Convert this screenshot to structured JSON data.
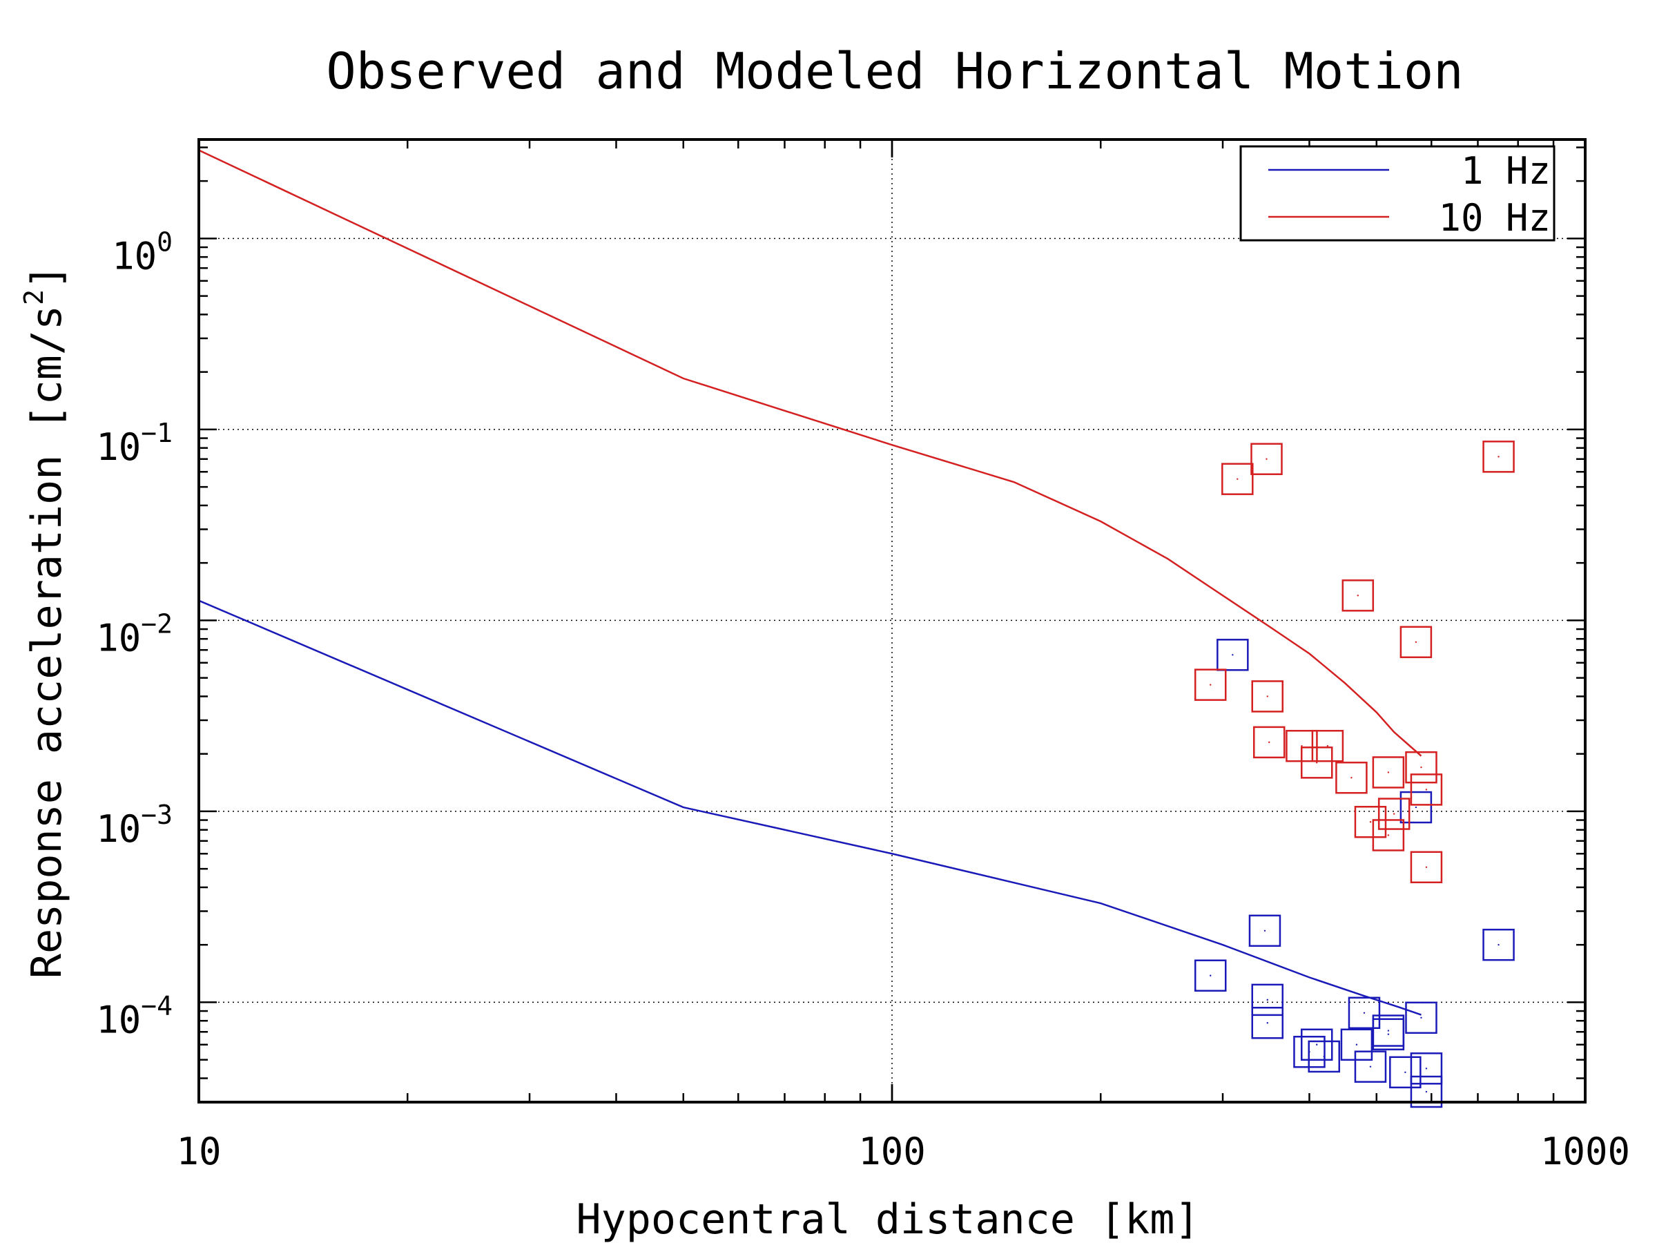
{
  "chart_data": {
    "type": "scatter",
    "title": "Observed and Modeled Horizontal Motion",
    "xlabel": "Hypocentral distance [km]",
    "ylabel": "Response acceleration [cm/s²]",
    "ylabel_main": "Response acceleration [cm/s",
    "ylabel_sup": "2",
    "ylabel_end": "]",
    "xscale": "log",
    "yscale": "log",
    "xlim": [
      10,
      1000
    ],
    "ylim": [
      3e-05,
      3.3
    ],
    "grid": "major, dotted",
    "legend_position": "top-right",
    "x_ticks": [
      {
        "value": 10,
        "label": "10"
      },
      {
        "value": 100,
        "label": "100"
      },
      {
        "value": 1000,
        "label": "1000"
      }
    ],
    "y_ticks": [
      {
        "value": 1,
        "base": "10",
        "exp": "0"
      },
      {
        "value": 0.1,
        "base": "10",
        "exp": "−1"
      },
      {
        "value": 0.01,
        "base": "10",
        "exp": "−2"
      },
      {
        "value": 0.001,
        "base": "10",
        "exp": "−3"
      },
      {
        "value": 0.0001,
        "base": "10",
        "exp": "−4"
      }
    ],
    "series": [
      {
        "name": "1 Hz",
        "color": "#1a1ab8",
        "model": {
          "x": [
            10,
            50,
            100,
            200,
            300,
            400,
            480,
            540,
            580
          ],
          "y": [
            0.0127,
            0.00105,
            0.0006,
            0.00033,
            0.0002,
            0.000135,
            0.000108,
            9.4e-05,
            8.6e-05
          ]
        },
        "observed": {
          "x": [
            310,
            288,
            345,
            348,
            348,
            400,
            410,
            420,
            468,
            480,
            490,
            520,
            520,
            550,
            570,
            580,
            590,
            590,
            750
          ],
          "y": [
            0.0066,
            0.000138,
            0.000237,
            0.000103,
            7.8e-05,
            5.5e-05,
            6e-05,
            5.2e-05,
            6e-05,
            8.8e-05,
            4.6e-05,
            7.1e-05,
            6.8e-05,
            4.3e-05,
            0.00105,
            8.3e-05,
            4.5e-05,
            3.4e-05,
            0.0002
          ]
        }
      },
      {
        "name": "10 Hz",
        "color": "#d42020",
        "model": {
          "x": [
            10,
            50,
            100,
            150,
            200,
            250,
            300,
            350,
            400,
            450,
            500,
            530,
            580
          ],
          "y": [
            2.9,
            0.185,
            0.083,
            0.053,
            0.033,
            0.021,
            0.0135,
            0.0093,
            0.0067,
            0.0047,
            0.0033,
            0.0026,
            0.00195
          ]
        },
        "observed": {
          "x": [
            315,
            347,
            288,
            348,
            350,
            390,
            410,
            425,
            460,
            470,
            490,
            520,
            520,
            530,
            570,
            580,
            590,
            590,
            750
          ],
          "y": [
            0.055,
            0.07,
            0.0046,
            0.004,
            0.0023,
            0.0022,
            0.0018,
            0.0022,
            0.0015,
            0.0135,
            0.00088,
            0.0016,
            0.00075,
            0.00097,
            0.0077,
            0.0017,
            0.0013,
            0.00051,
            0.072
          ]
        }
      }
    ]
  }
}
